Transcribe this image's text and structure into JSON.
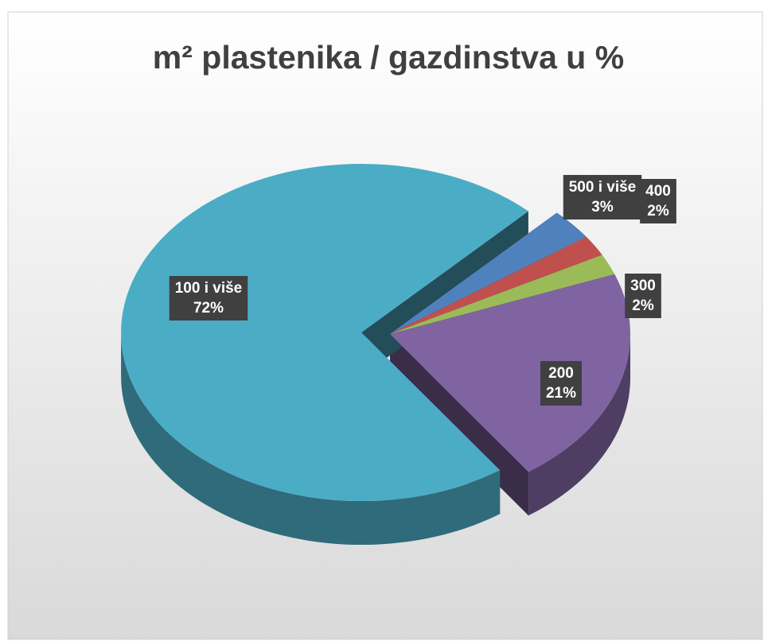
{
  "chart_data": {
    "type": "pie3d",
    "title": "m² plastenika / gazdinstva u %",
    "categories": [
      "500 i više",
      "400",
      "300",
      "200",
      "100 i više"
    ],
    "values": [
      3,
      2,
      2,
      21,
      72
    ],
    "value_labels": [
      "3%",
      "2%",
      "2%",
      "21%",
      "72%"
    ],
    "colors": [
      "#4f81bd",
      "#c0504d",
      "#9bbb59",
      "#8064a2",
      "#4bacc6"
    ]
  }
}
